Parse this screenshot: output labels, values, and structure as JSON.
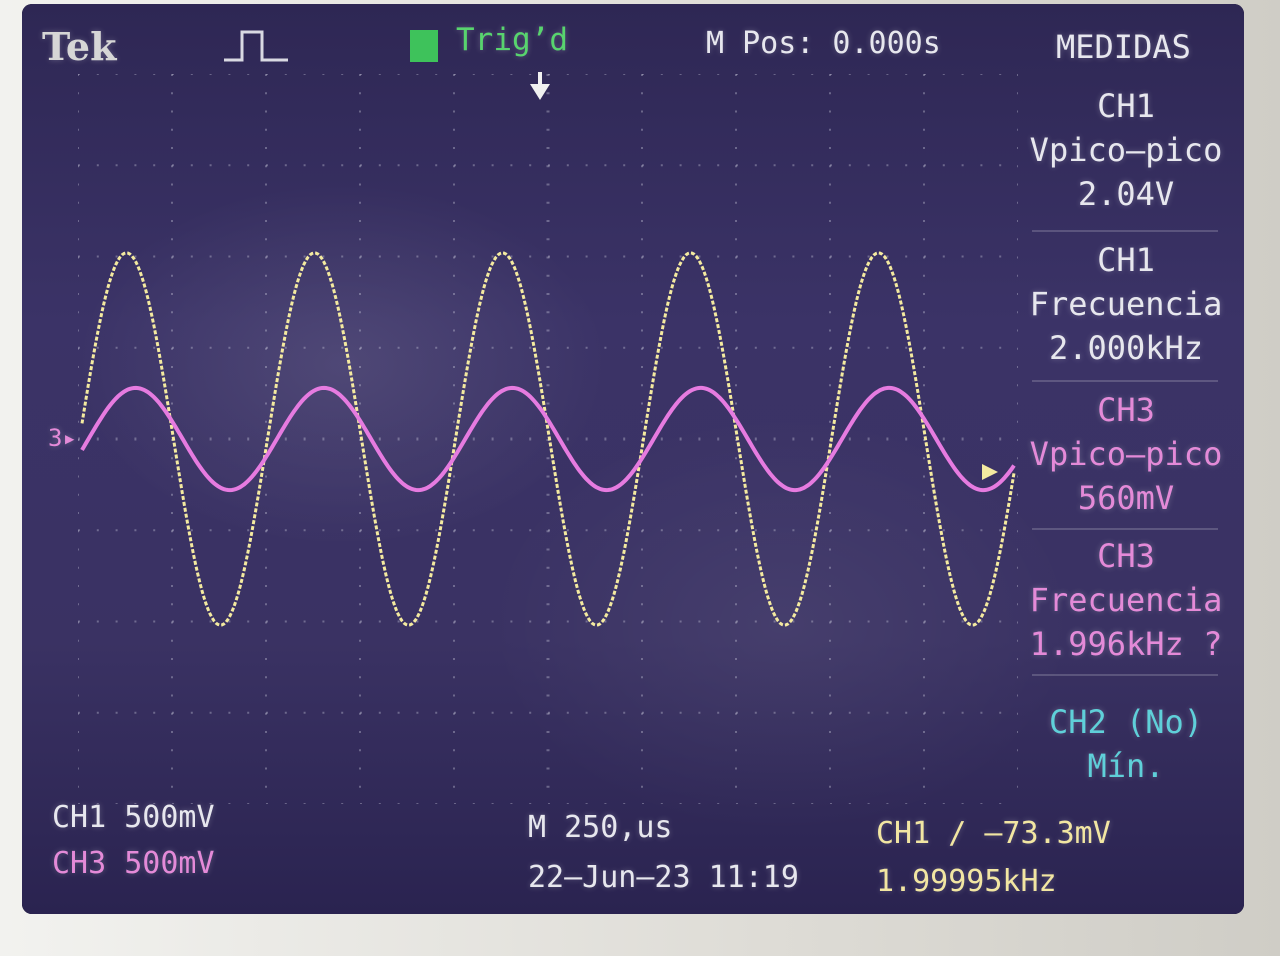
{
  "header": {
    "brand": "Tek",
    "acquire_icon": "pulse-icon",
    "trigger_status": "Trig’d",
    "horizontal_position": "M Pos: 0.000s",
    "menu_title": "MEDIDAS"
  },
  "measurements": [
    {
      "channel": "CH1",
      "name": "Vpico–pico",
      "value": "2.04V"
    },
    {
      "channel": "CH1",
      "name": "Frecuencia",
      "value": "2.000kHz"
    },
    {
      "channel": "CH3",
      "name": "Vpico–pico",
      "value": "560mV"
    },
    {
      "channel": "CH3",
      "name": "Frecuencia",
      "value": "1.996kHz ?"
    },
    {
      "channel": "CH2 (No)",
      "name": "Mín.",
      "value": ""
    }
  ],
  "footer": {
    "ch1_scale": "CH1  500mV",
    "ch3_scale": "CH3  500mV",
    "timebase": "M 250,us",
    "datetime": "22–Jun–23 11:19",
    "trigger_info": "CH1 ∕ –73.3mV",
    "trigger_frequency": "1.99995kHz"
  },
  "markers": {
    "ch3_ground": "3▸"
  },
  "colors": {
    "ch1": "#f4eaa0",
    "ch3": "#e67be0",
    "ch2": "#5fd0d9",
    "trigger": "#3ec25b",
    "background": "#3a3263"
  },
  "waveforms": {
    "ch1": {
      "frequency_khz": 2.0,
      "vpp_v": 2.04,
      "shape": "sine"
    },
    "ch3": {
      "frequency_khz": 1.996,
      "vpp_v": 0.56,
      "shape": "sine"
    }
  }
}
